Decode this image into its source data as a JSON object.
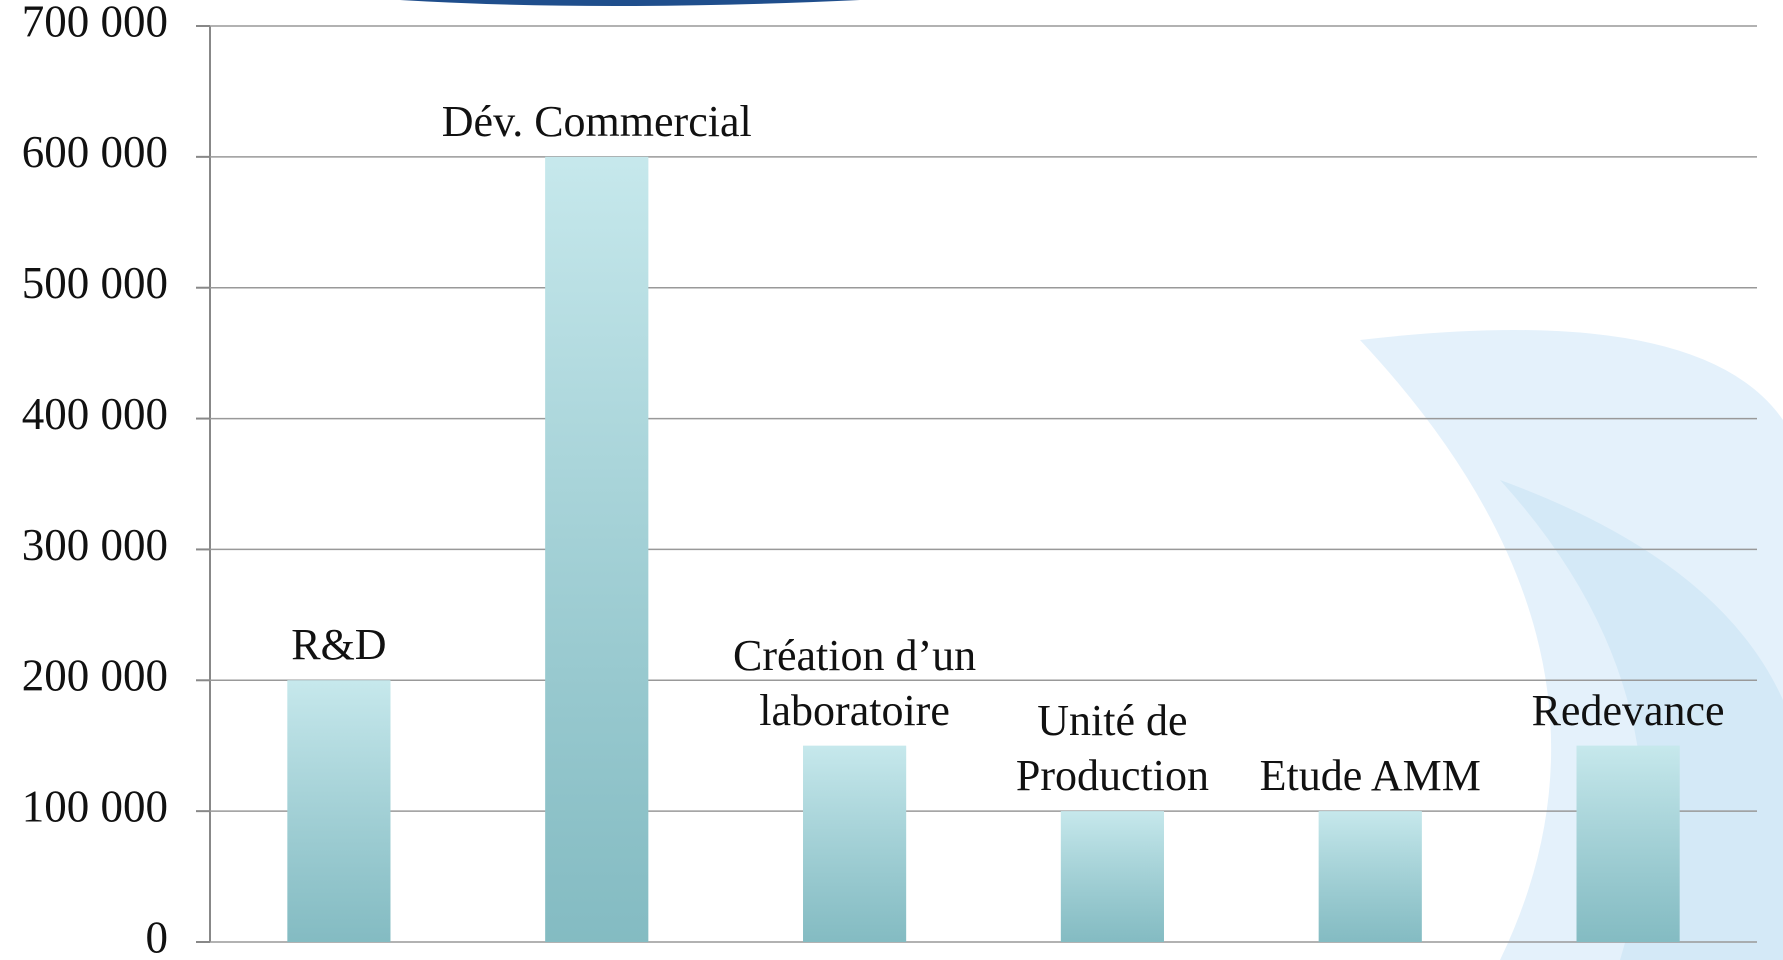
{
  "chart_data": {
    "type": "bar",
    "categories": [
      "R&D",
      "Dév. Commercial",
      "Création d’un\nlaboratoire",
      "Unité de\nProduction",
      "Etude AMM",
      "Redevance"
    ],
    "values": [
      200000,
      600000,
      150000,
      100000,
      100000,
      150000
    ],
    "color": "#a8dce2",
    "ylim": [
      0,
      700000
    ],
    "yticks": [
      0,
      {
        "value": 100000,
        "label": "100 000"
      },
      {
        "value": 200000,
        "label": "200 000"
      },
      {
        "value": 300000,
        "label": "300 000"
      },
      {
        "value": 400000,
        "label": "400 000"
      },
      {
        "value": 500000,
        "label": "500 000"
      },
      {
        "value": 600000,
        "label": "600 000"
      },
      {
        "value": 700000,
        "label": "700 000"
      }
    ],
    "grid": true
  }
}
